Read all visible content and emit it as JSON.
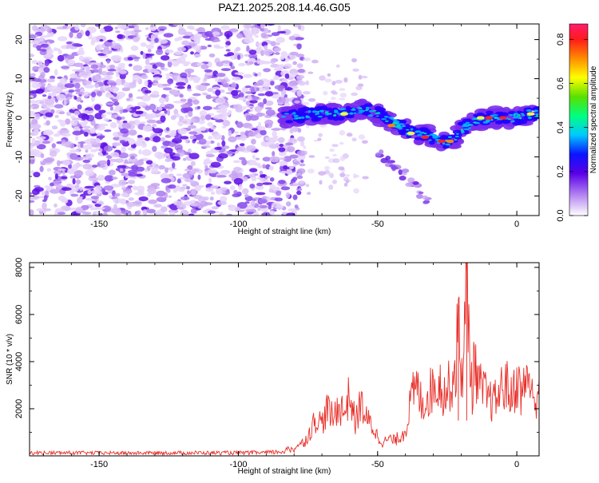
{
  "title": "PAZ1.2025.208.14.46.G05",
  "colors": {
    "snr_line": "#e8302a",
    "background": "#ffffff",
    "axis": "#000000"
  },
  "chart_data": [
    {
      "type": "heatmap",
      "title": "PAZ1.2025.208.14.46.G05",
      "xlabel": "Height of straight line (km)",
      "ylabel": "Frequency (Hz)",
      "xlim": [
        -175,
        8
      ],
      "ylim": [
        -25,
        24
      ],
      "xticks": [
        -150,
        -100,
        -50,
        0
      ],
      "yticks": [
        -20,
        -10,
        0,
        10,
        20
      ],
      "colormap": "rainbow",
      "colorbar": {
        "label": "Normalized spectral amplitude",
        "range": [
          0,
          0.87
        ],
        "ticks": [
          "0.0",
          "0.2",
          "0.4",
          "0.6",
          "0.8"
        ]
      },
      "features": [
        {
          "name": "noise",
          "x_range": [
            -175,
            -77
          ],
          "freq_range": [
            -25,
            24
          ],
          "amplitude": 0.1
        },
        {
          "name": "signal-trace",
          "trace": [
            [
              -84,
              0
            ],
            [
              -75,
              1
            ],
            [
              -65,
              1
            ],
            [
              -55,
              2
            ],
            [
              -50,
              1
            ],
            [
              -45,
              -1
            ],
            [
              -40,
              -3
            ],
            [
              -35,
              -4
            ],
            [
              -30,
              -5
            ],
            [
              -25,
              -6
            ],
            [
              -22,
              -5
            ],
            [
              -20,
              -3
            ],
            [
              -15,
              -1
            ],
            [
              -10,
              0
            ],
            [
              -5,
              0
            ],
            [
              0,
              0
            ],
            [
              5,
              1
            ],
            [
              8,
              1
            ]
          ],
          "amplitude": 0.85
        },
        {
          "name": "weak-branch",
          "trace": [
            [
              -50,
              -9
            ],
            [
              -45,
              -12
            ],
            [
              -40,
              -15
            ],
            [
              -35,
              -18
            ],
            [
              -32,
              -22
            ]
          ],
          "amplitude": 0.2
        }
      ]
    },
    {
      "type": "line",
      "xlabel": "Height of straight line (km)",
      "ylabel": "SNR (10 * v/v)",
      "xlim": [
        -175,
        8
      ],
      "ylim": [
        0,
        8200
      ],
      "xticks": [
        -150,
        -100,
        -50,
        0
      ],
      "yticks": [
        2000,
        4000,
        6000,
        8000
      ],
      "series": [
        {
          "x": [
            -175,
            -160,
            -140,
            -120,
            -100,
            -90,
            -85,
            -80,
            -76,
            -74,
            -72,
            -70,
            -68,
            -66,
            -64,
            -62,
            -60,
            -58,
            -56,
            -54,
            -52,
            -50,
            -48,
            -46,
            -44,
            -42,
            -40,
            -38,
            -36,
            -34,
            -32,
            -30,
            -28,
            -26,
            -24,
            -22,
            -21,
            -20,
            -19,
            -18,
            -17,
            -16,
            -15,
            -14,
            -12,
            -10,
            -8,
            -6,
            -4,
            -2,
            0,
            2,
            4,
            6,
            8
          ],
          "y": [
            150,
            150,
            140,
            150,
            150,
            160,
            200,
            350,
            700,
            1200,
            1800,
            1500,
            2200,
            1700,
            2400,
            2000,
            2900,
            1500,
            2500,
            1700,
            1400,
            900,
            600,
            800,
            700,
            900,
            1200,
            2600,
            3200,
            2400,
            2800,
            3200,
            3500,
            2900,
            3300,
            4000,
            6400,
            3800,
            4800,
            8200,
            5000,
            3100,
            4600,
            3300,
            3000,
            2600,
            2500,
            3000,
            3400,
            2700,
            3500,
            2800,
            4000,
            2300,
            3300
          ]
        }
      ]
    }
  ]
}
